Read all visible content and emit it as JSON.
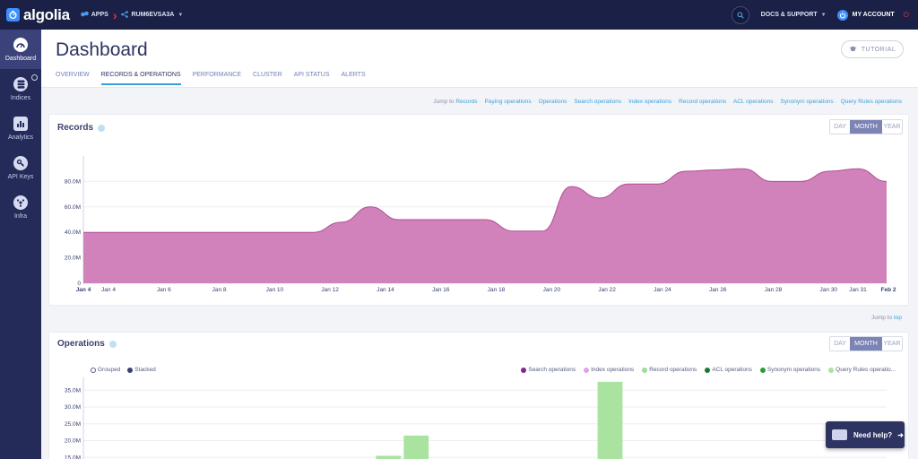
{
  "topbar": {
    "logo": "algolia",
    "apps_label": "APPS",
    "app_id": "RUM6EVSA3A",
    "docs_label": "DOCS & SUPPORT",
    "account_label": "MY ACCOUNT"
  },
  "sidebar": {
    "items": [
      {
        "label": "Dashboard",
        "icon": "dashboard-icon"
      },
      {
        "label": "Indices",
        "icon": "database-icon"
      },
      {
        "label": "Analytics",
        "icon": "analytics-icon"
      },
      {
        "label": "API Keys",
        "icon": "key-icon"
      },
      {
        "label": "Infra",
        "icon": "infra-icon"
      }
    ]
  },
  "page": {
    "title": "Dashboard",
    "tutorial_label": "TUTORIAL",
    "tabs": [
      {
        "label": "OVERVIEW"
      },
      {
        "label": "RECORDS & OPERATIONS"
      },
      {
        "label": "PERFORMANCE"
      },
      {
        "label": "CLUSTER"
      },
      {
        "label": "API STATUS"
      },
      {
        "label": "ALERTS"
      }
    ],
    "jump_to_label": "Jump to",
    "jump_links": [
      "Records",
      "Paying operations",
      "Operations",
      "Search operations",
      "Index operations",
      "Record operations",
      "ACL operations",
      "Synonym operations",
      "Query Rules operations"
    ],
    "jump_top_prefix": "Jump to",
    "jump_top_link": "top"
  },
  "records_card": {
    "title": "Records",
    "ranges": [
      "DAY",
      "MONTH",
      "YEAR"
    ]
  },
  "operations_card": {
    "title": "Operations",
    "ranges": [
      "DAY",
      "MONTH",
      "YEAR"
    ],
    "grouped_label": "Grouped",
    "stacked_label": "Stacked",
    "legend": [
      {
        "name": "Search operations",
        "color": "#7d2a8c"
      },
      {
        "name": "Index operations",
        "color": "#d8a6e6"
      },
      {
        "name": "Record operations",
        "color": "#9fdc97"
      },
      {
        "name": "ACL operations",
        "color": "#1b7a2f"
      },
      {
        "name": "Synonym operations",
        "color": "#2a9d3a"
      },
      {
        "name": "Query Rules operatio...",
        "color": "#a9e39f"
      }
    ]
  },
  "help_button_label": "Need help?",
  "chart_data": [
    {
      "type": "area",
      "x": [
        "Jan 4",
        "Jan 5",
        "Jan 6",
        "Jan 7",
        "Jan 8",
        "Jan 9",
        "Jan 10",
        "Jan 11",
        "Jan 12",
        "Jan 13",
        "Jan 14",
        "Jan 15",
        "Jan 16",
        "Jan 17",
        "Jan 18",
        "Jan 19",
        "Jan 20",
        "Jan 21",
        "Jan 22",
        "Jan 23",
        "Jan 24",
        "Jan 25",
        "Jan 26",
        "Jan 27",
        "Jan 28",
        "Jan 29",
        "Jan 30",
        "Jan 31",
        "Feb 1"
      ],
      "values": [
        40,
        40,
        40,
        40,
        40,
        40,
        40,
        40,
        40,
        48,
        60,
        50,
        50,
        50,
        50,
        41,
        41,
        76,
        67,
        78,
        78,
        88,
        89,
        90,
        80,
        80,
        88,
        90,
        80
      ],
      "x_tick_labels": [
        "Jan 4",
        "Jan 4",
        "Jan 6",
        "Jan 8",
        "Jan 10",
        "Jan 12",
        "Jan 14",
        "Jan 16",
        "Jan 18",
        "Jan 20",
        "Jan 22",
        "Jan 24",
        "Jan 26",
        "Jan 28",
        "Jan 30",
        "Jan 31",
        "Feb 2"
      ],
      "y_tick_labels": [
        "0",
        "20.0M",
        "40.0M",
        "60.0M",
        "80.0M"
      ],
      "ylim": [
        0,
        100
      ],
      "unit": "M",
      "color": "#d07bb6",
      "line_color": "#b24d97"
    },
    {
      "type": "bar",
      "y_tick_labels": [
        "15.0M",
        "20.0M",
        "25.0M",
        "30.0M",
        "35.0M"
      ],
      "ylim": [
        13,
        38
      ],
      "bars": [
        {
          "x_index": 10,
          "value": 15.5,
          "color": "#a9e39f"
        },
        {
          "x_index": 11,
          "value": 21.5,
          "color": "#a9e39f"
        },
        {
          "x_index": 18,
          "value": 37.5,
          "color": "#a9e39f"
        }
      ]
    }
  ]
}
